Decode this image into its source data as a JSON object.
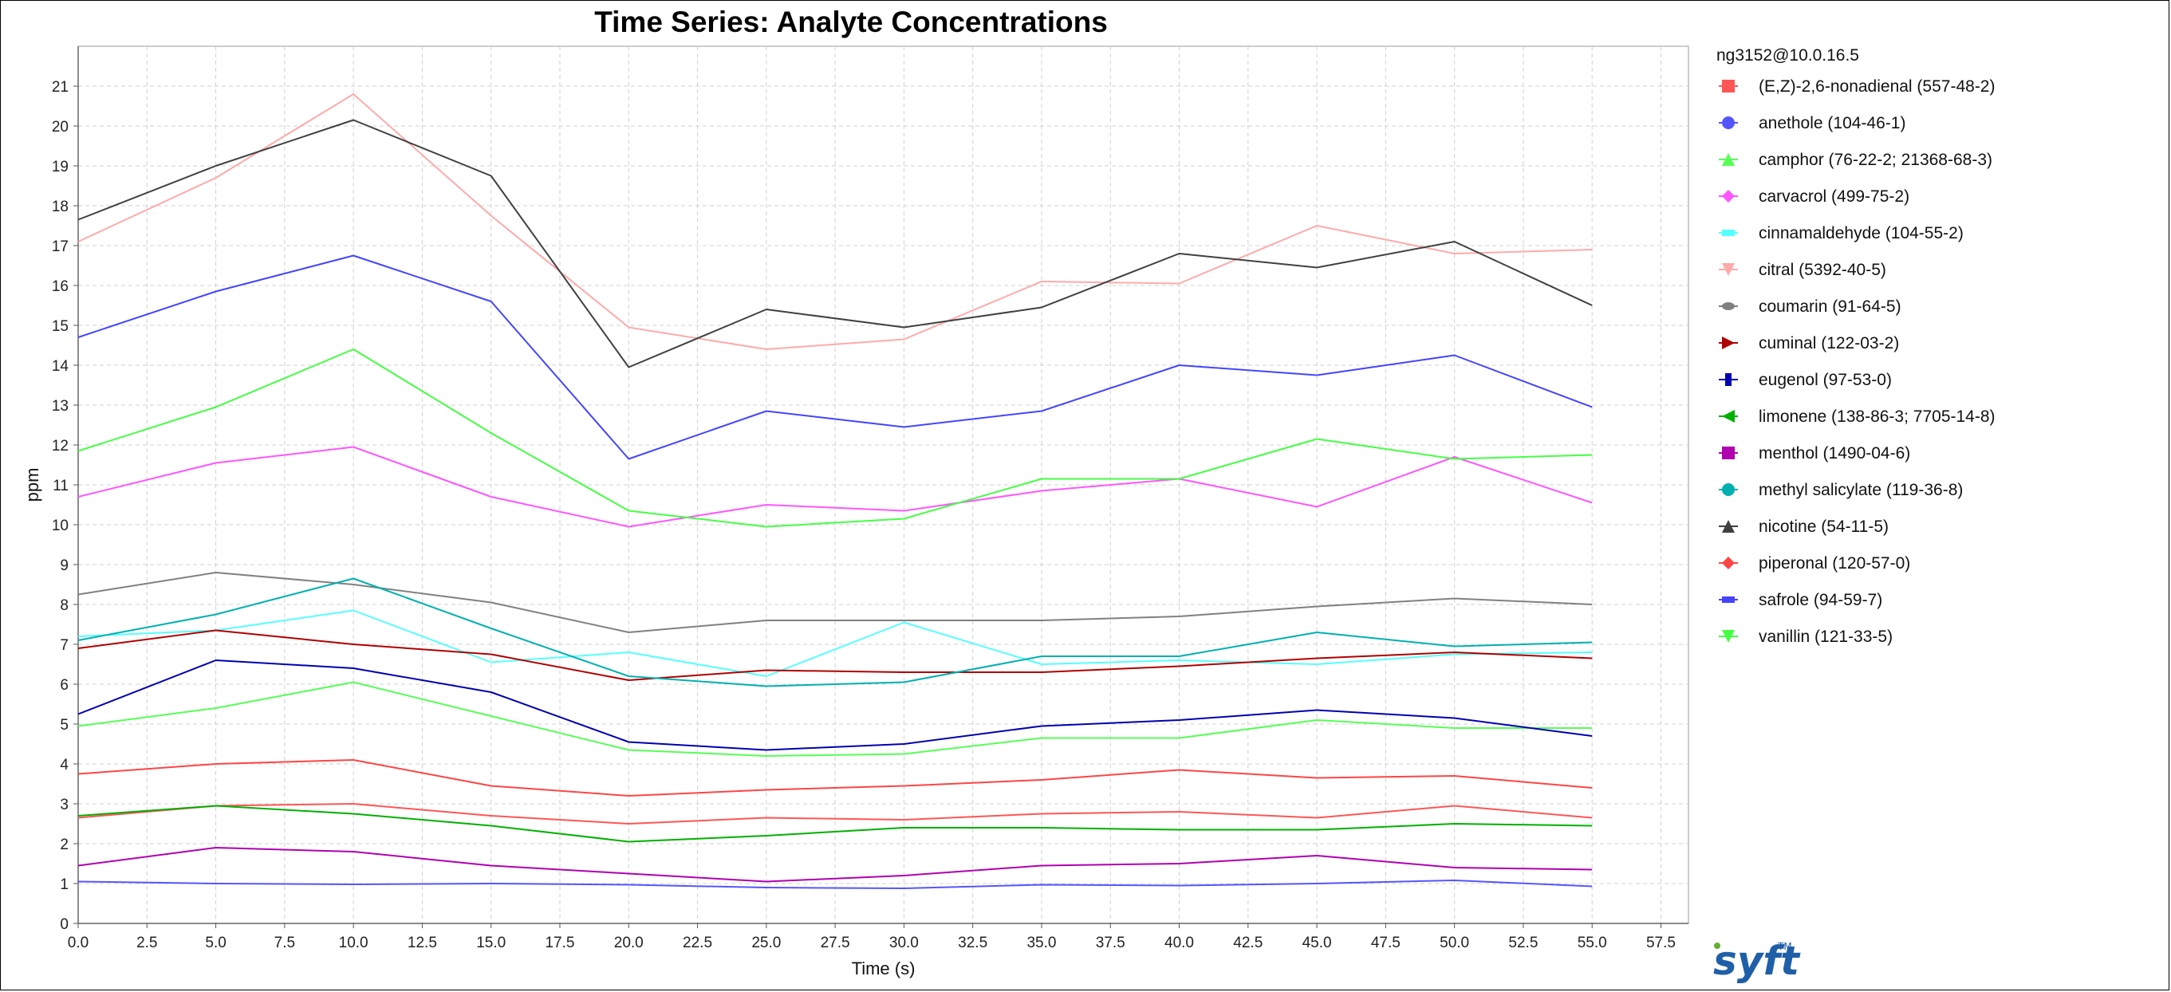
{
  "chart_data": {
    "type": "line",
    "title": "Time Series: Analyte Concentrations",
    "xlabel": "Time (s)",
    "ylabel": "ppm",
    "xlim": [
      0,
      58.5
    ],
    "ylim": [
      0,
      22
    ],
    "x_ticks": [
      "0.0",
      "2.5",
      "5.0",
      "7.5",
      "10.0",
      "12.5",
      "15.0",
      "17.5",
      "20.0",
      "22.5",
      "25.0",
      "27.5",
      "30.0",
      "32.5",
      "35.0",
      "37.5",
      "40.0",
      "42.5",
      "45.0",
      "47.5",
      "50.0",
      "52.5",
      "55.0",
      "57.5"
    ],
    "y_ticks": [
      "0",
      "1",
      "2",
      "3",
      "4",
      "5",
      "6",
      "7",
      "8",
      "9",
      "10",
      "11",
      "12",
      "13",
      "14",
      "15",
      "16",
      "17",
      "18",
      "19",
      "20",
      "21"
    ],
    "grid": true,
    "legend_title": "ng3152@10.0.16.5",
    "legend_position": "right",
    "x": [
      0,
      5,
      10,
      15,
      20,
      25,
      30,
      35,
      40,
      45,
      50,
      55
    ],
    "series": [
      {
        "name": "(E,Z)-2,6-nonadienal (557-48-2)",
        "color": "#ff5555",
        "marker": "square",
        "values": [
          2.65,
          2.95,
          3.0,
          2.7,
          2.5,
          2.65,
          2.6,
          2.75,
          2.8,
          2.65,
          2.95,
          2.65
        ]
      },
      {
        "name": "anethole (104-46-1)",
        "color": "#5555ff",
        "marker": "circle",
        "values": [
          1.05,
          1.0,
          0.98,
          1.0,
          0.97,
          0.9,
          0.88,
          0.97,
          0.95,
          1.0,
          1.08,
          0.93
        ]
      },
      {
        "name": "camphor (76-22-2; 21368-68-3)",
        "color": "#55ff55",
        "marker": "triangle-up",
        "values": [
          4.95,
          5.4,
          6.05,
          5.2,
          4.35,
          4.2,
          4.25,
          4.65,
          4.65,
          5.1,
          4.9,
          4.9
        ]
      },
      {
        "name": "carvacrol (499-75-2)",
        "color": "#ff55ff",
        "marker": "diamond",
        "values": [
          10.7,
          11.55,
          11.95,
          10.7,
          9.95,
          10.5,
          10.35,
          10.85,
          11.15,
          10.45,
          11.7,
          10.55
        ]
      },
      {
        "name": "cinnamaldehyde (104-55-2)",
        "color": "#55ffff",
        "marker": "rect-h",
        "values": [
          7.2,
          7.35,
          7.85,
          6.55,
          6.8,
          6.2,
          7.55,
          6.5,
          6.6,
          6.5,
          6.75,
          6.8
        ]
      },
      {
        "name": "citral (5392-40-5)",
        "color": "#ffaaaa",
        "marker": "triangle-down",
        "values": [
          17.1,
          18.7,
          20.8,
          17.75,
          14.95,
          14.4,
          14.65,
          16.1,
          16.05,
          17.5,
          16.8,
          16.9
        ]
      },
      {
        "name": "coumarin (91-64-5)",
        "color": "#808080",
        "marker": "ellipse",
        "values": [
          8.25,
          8.8,
          8.5,
          8.05,
          7.3,
          7.6,
          7.6,
          7.6,
          7.7,
          7.95,
          8.15,
          8.0
        ]
      },
      {
        "name": "cuminal (122-03-2)",
        "color": "#b00000",
        "marker": "triangle-right",
        "values": [
          6.9,
          7.35,
          7.0,
          6.75,
          6.1,
          6.35,
          6.3,
          6.3,
          6.45,
          6.65,
          6.8,
          6.65
        ]
      },
      {
        "name": "eugenol (97-53-0)",
        "color": "#0000b0",
        "marker": "rect-v",
        "values": [
          5.25,
          6.6,
          6.4,
          5.8,
          4.55,
          4.35,
          4.5,
          4.95,
          5.1,
          5.35,
          5.15,
          4.7
        ]
      },
      {
        "name": "limonene (138-86-3; 7705-14-8)",
        "color": "#00b000",
        "marker": "triangle-left",
        "values": [
          2.7,
          2.95,
          2.75,
          2.45,
          2.05,
          2.2,
          2.4,
          2.4,
          2.35,
          2.35,
          2.5,
          2.45
        ]
      },
      {
        "name": "menthol (1490-04-6)",
        "color": "#b000b0",
        "marker": "square",
        "values": [
          1.45,
          1.9,
          1.8,
          1.45,
          1.25,
          1.05,
          1.2,
          1.45,
          1.5,
          1.7,
          1.4,
          1.35
        ]
      },
      {
        "name": "methyl salicylate (119-36-8)",
        "color": "#00b0b0",
        "marker": "circle",
        "values": [
          7.1,
          7.75,
          8.65,
          7.4,
          6.2,
          5.95,
          6.05,
          6.7,
          6.7,
          7.3,
          6.95,
          7.05
        ]
      },
      {
        "name": "nicotine (54-11-5)",
        "color": "#404040",
        "marker": "triangle-up",
        "values": [
          17.65,
          19.0,
          20.15,
          18.75,
          13.95,
          15.4,
          14.95,
          15.45,
          16.8,
          16.45,
          17.1,
          15.5
        ]
      },
      {
        "name": "piperonal (120-57-0)",
        "color": "#ff4444",
        "marker": "diamond",
        "values": [
          3.75,
          4.0,
          4.1,
          3.45,
          3.2,
          3.35,
          3.45,
          3.6,
          3.85,
          3.65,
          3.7,
          3.4
        ]
      },
      {
        "name": "safrole (94-59-7)",
        "color": "#4444ff",
        "marker": "rect-h",
        "values": [
          14.7,
          15.85,
          16.75,
          15.6,
          11.65,
          12.85,
          12.45,
          12.85,
          14.0,
          13.75,
          14.25,
          12.95
        ]
      },
      {
        "name": "vanillin (121-33-5)",
        "color": "#44ff44",
        "marker": "triangle-down",
        "values": [
          11.85,
          12.95,
          14.4,
          12.3,
          10.35,
          9.95,
          10.15,
          11.15,
          11.15,
          12.15,
          11.65,
          11.75
        ]
      }
    ]
  },
  "logo": {
    "text": "syft",
    "tm": "TM"
  }
}
